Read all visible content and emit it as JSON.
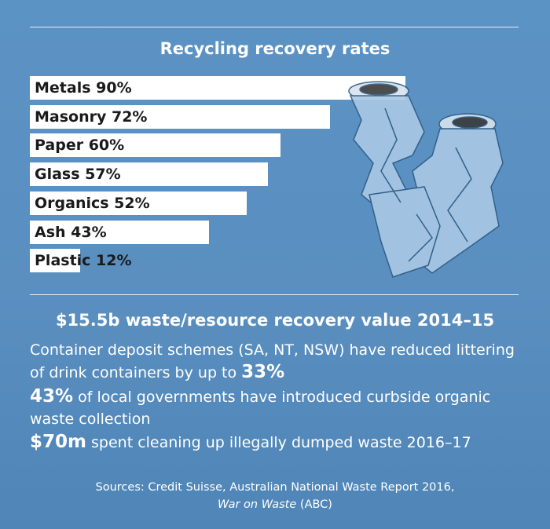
{
  "chart_data": {
    "type": "bar",
    "title": "Recycling recovery rates",
    "categories": [
      "Metals",
      "Masonry",
      "Paper",
      "Glass",
      "Organics",
      "Ash",
      "Plastic"
    ],
    "values": [
      90,
      72,
      60,
      57,
      52,
      43,
      12
    ],
    "labels": [
      "Metals 90%",
      "Masonry 72%",
      "Paper 60%",
      "Glass 57%",
      "Organics 52%",
      "Ash 43%",
      "Plastic 12%"
    ],
    "xlim": [
      0,
      100
    ],
    "orientation": "horizontal",
    "bar_color": "#ffffff"
  },
  "headline": "$15.5b waste/resource recovery value 2014–15",
  "facts": [
    {
      "pre": "Container deposit schemes (SA, NT, NSW) have reduced littering of drink containers by up to ",
      "strong": "33%",
      "post": ""
    },
    {
      "pre": "",
      "strong": "43%",
      "post": " of local governments have introduced curbside organic waste collection"
    },
    {
      "pre": "",
      "strong": "$70m",
      "post": " spent cleaning up illegally dumped waste 2016–17"
    }
  ],
  "sources": {
    "line1": "Sources: Credit Suisse, Australian National Waste Report 2016,",
    "italic": "War on Waste",
    "suffix": " (ABC)"
  },
  "colors": {
    "background": "#5a8fc0",
    "bar": "#ffffff",
    "text": "#ffffff",
    "bar_text": "#1a1a1a"
  },
  "illustration": "crushed-cans-icon"
}
